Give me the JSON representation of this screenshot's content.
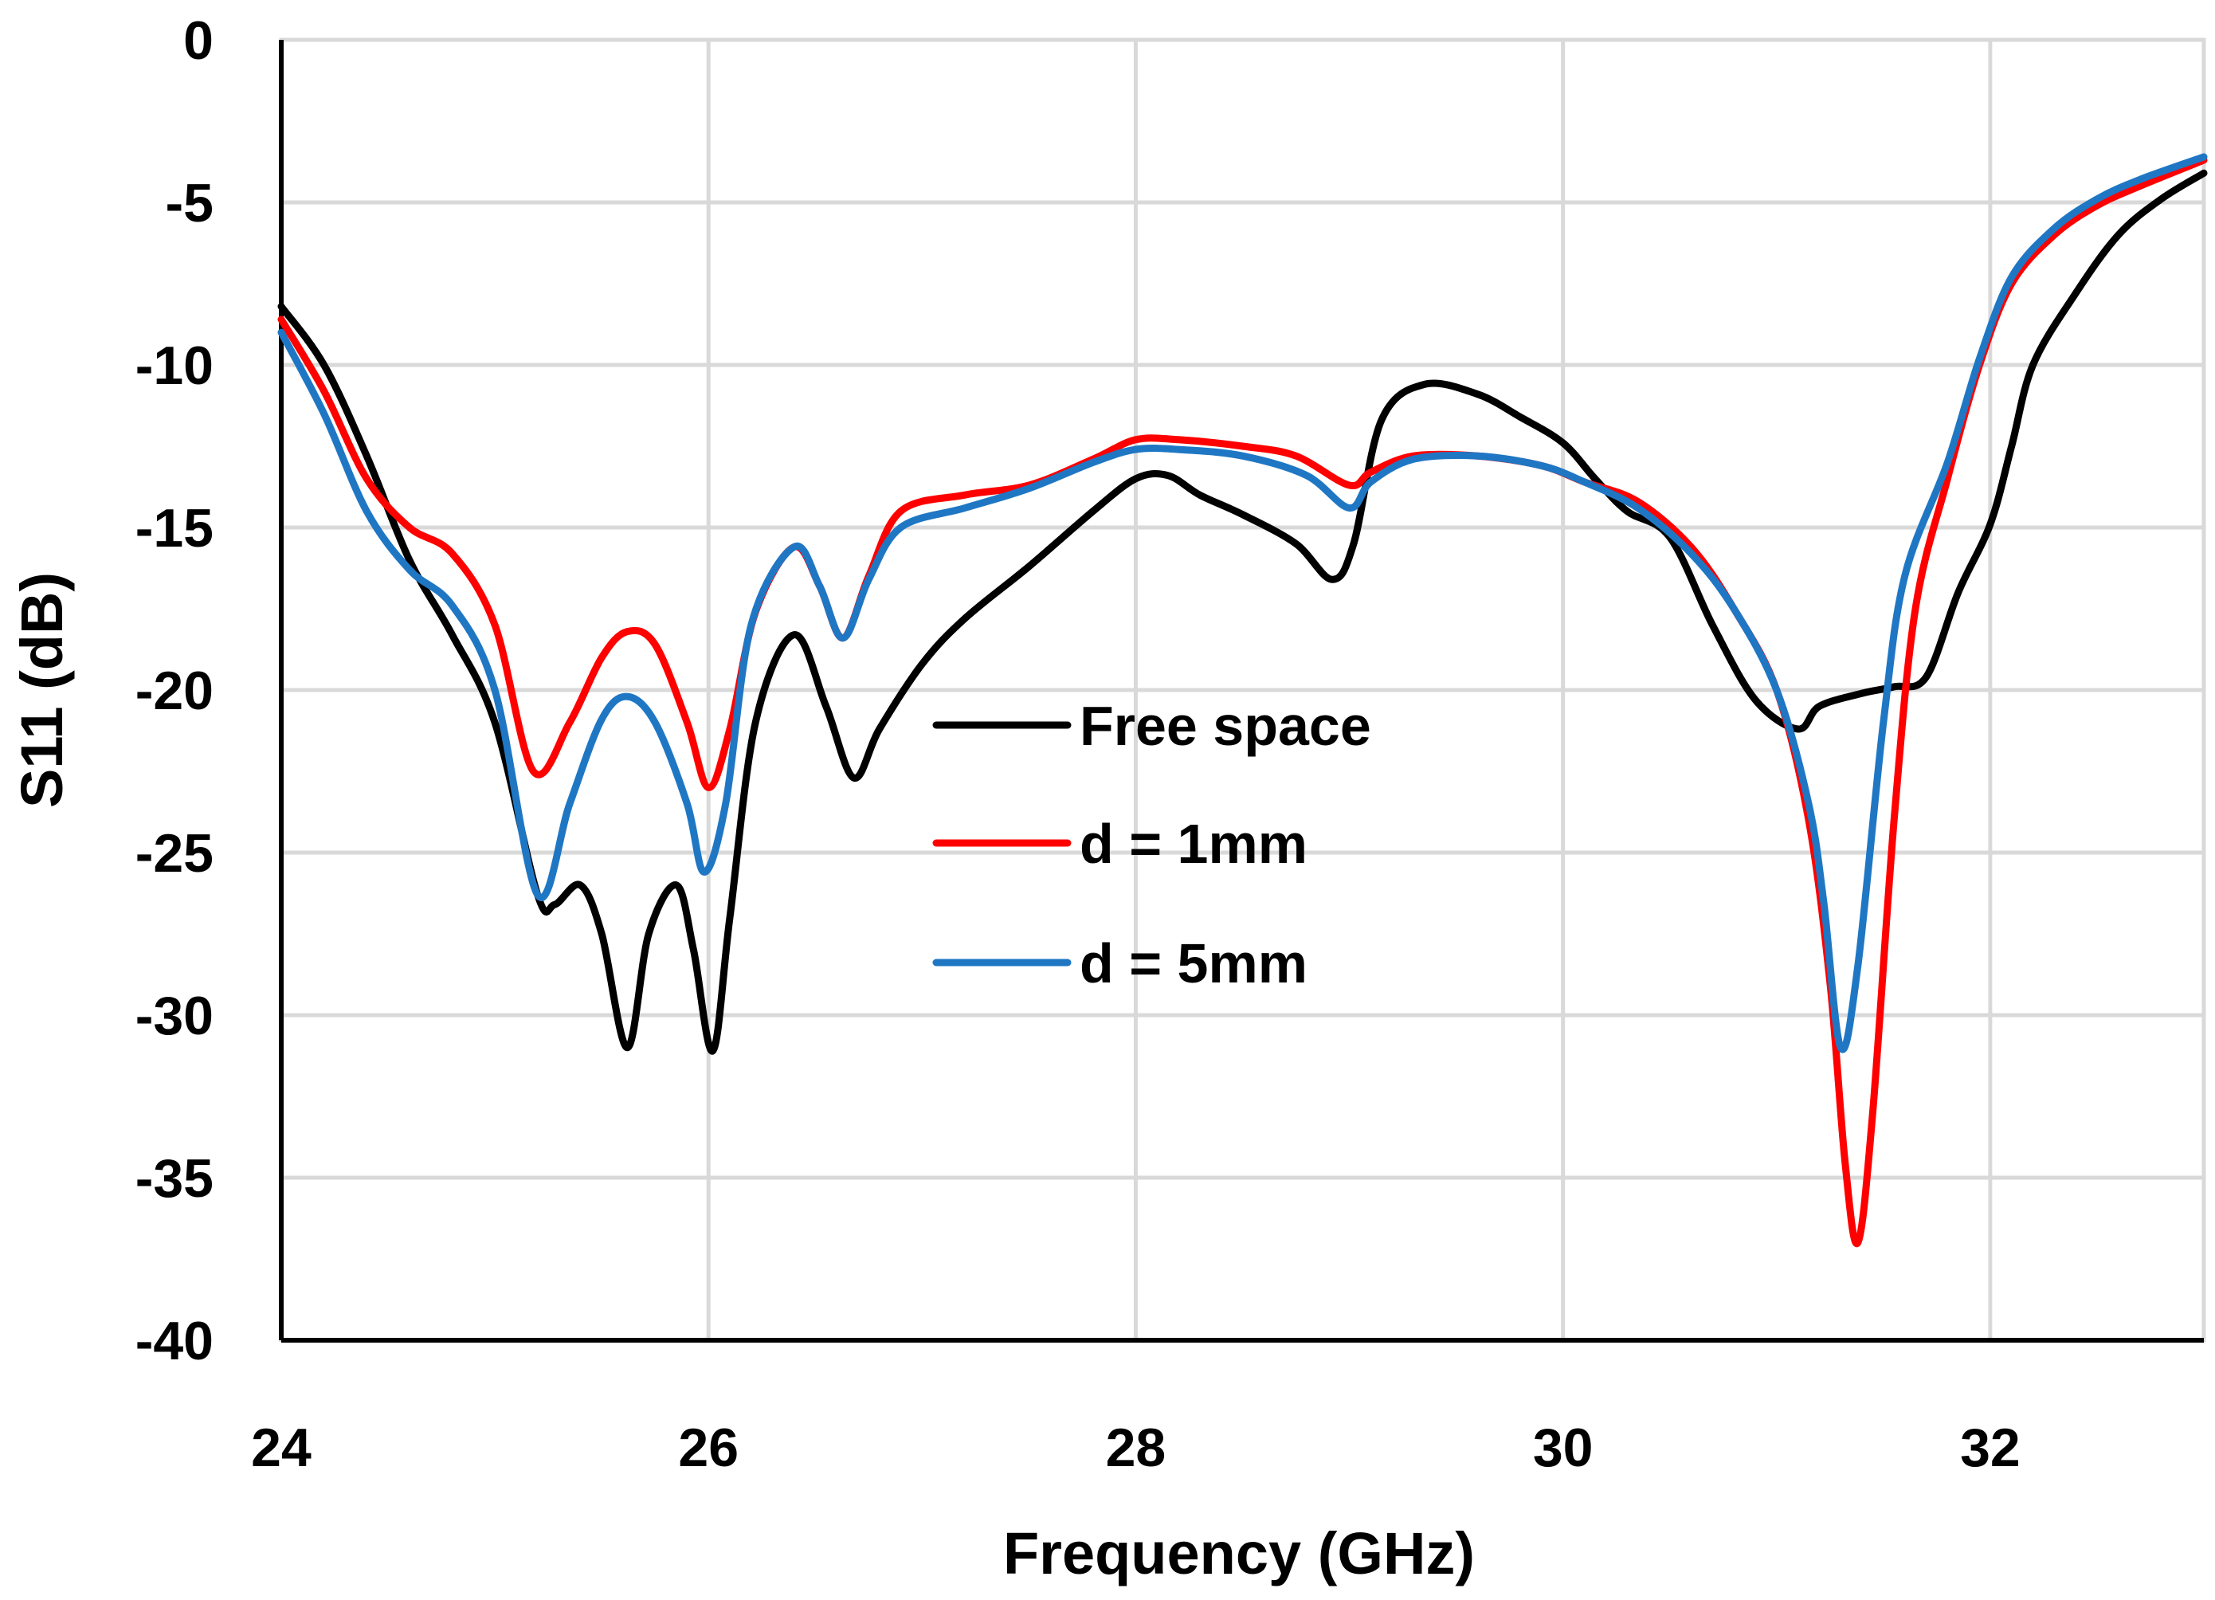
{
  "chart_data": {
    "type": "line",
    "title": "",
    "xlabel": "Frequency (GHz)",
    "ylabel": "S11 (dB)",
    "xlim": [
      24,
      33
    ],
    "ylim": [
      -40,
      0
    ],
    "xticks": [
      24,
      26,
      28,
      30,
      32
    ],
    "yticks": [
      0,
      -5,
      -10,
      -15,
      -20,
      -25,
      -30,
      -35,
      -40
    ],
    "x_tick_labels": [
      "24",
      "26",
      "28",
      "30",
      "32"
    ],
    "y_tick_labels": [
      "0",
      "-5",
      "-10",
      "-15",
      "-20",
      "-25",
      "-30",
      "-35",
      "-40"
    ],
    "grid": true,
    "legend_position": "center",
    "series": [
      {
        "name": "Free space",
        "color": "#000000",
        "points": [
          [
            24.0,
            -8.2
          ],
          [
            24.2,
            -10.0
          ],
          [
            24.4,
            -12.8
          ],
          [
            24.6,
            -16.0
          ],
          [
            24.8,
            -18.3
          ],
          [
            25.0,
            -21.0
          ],
          [
            25.2,
            -26.3
          ],
          [
            25.28,
            -26.6
          ],
          [
            25.4,
            -26.0
          ],
          [
            25.5,
            -27.5
          ],
          [
            25.62,
            -31.0
          ],
          [
            25.72,
            -27.5
          ],
          [
            25.85,
            -26.0
          ],
          [
            25.93,
            -28.0
          ],
          [
            26.02,
            -31.1
          ],
          [
            26.1,
            -27.0
          ],
          [
            26.22,
            -21.0
          ],
          [
            26.4,
            -18.3
          ],
          [
            26.55,
            -20.5
          ],
          [
            26.68,
            -22.7
          ],
          [
            26.8,
            -21.2
          ],
          [
            27.0,
            -19.2
          ],
          [
            27.2,
            -17.8
          ],
          [
            27.5,
            -16.2
          ],
          [
            27.8,
            -14.5
          ],
          [
            28.0,
            -13.5
          ],
          [
            28.15,
            -13.4
          ],
          [
            28.3,
            -14.0
          ],
          [
            28.5,
            -14.6
          ],
          [
            28.75,
            -15.5
          ],
          [
            28.92,
            -16.6
          ],
          [
            29.02,
            -15.5
          ],
          [
            29.15,
            -11.7
          ],
          [
            29.35,
            -10.6
          ],
          [
            29.6,
            -10.9
          ],
          [
            29.8,
            -11.6
          ],
          [
            30.0,
            -12.4
          ],
          [
            30.15,
            -13.5
          ],
          [
            30.3,
            -14.5
          ],
          [
            30.5,
            -15.3
          ],
          [
            30.7,
            -18.0
          ],
          [
            30.9,
            -20.3
          ],
          [
            31.1,
            -21.2
          ],
          [
            31.2,
            -20.5
          ],
          [
            31.4,
            -20.1
          ],
          [
            31.55,
            -19.9
          ],
          [
            31.7,
            -19.6
          ],
          [
            31.85,
            -17.0
          ],
          [
            32.0,
            -14.9
          ],
          [
            32.1,
            -12.5
          ],
          [
            32.2,
            -10.0
          ],
          [
            32.4,
            -7.8
          ],
          [
            32.6,
            -6.0
          ],
          [
            32.8,
            -4.9
          ],
          [
            33.0,
            -4.1
          ]
        ]
      },
      {
        "name": "d = 1mm",
        "color": "#ff0000",
        "points": [
          [
            24.0,
            -8.6
          ],
          [
            24.2,
            -10.8
          ],
          [
            24.4,
            -13.5
          ],
          [
            24.6,
            -15.0
          ],
          [
            24.8,
            -15.8
          ],
          [
            25.0,
            -18.0
          ],
          [
            25.18,
            -22.5
          ],
          [
            25.35,
            -21.0
          ],
          [
            25.5,
            -19.0
          ],
          [
            25.62,
            -18.2
          ],
          [
            25.75,
            -18.6
          ],
          [
            25.9,
            -21.0
          ],
          [
            26.0,
            -23.0
          ],
          [
            26.1,
            -21.2
          ],
          [
            26.22,
            -17.6
          ],
          [
            26.4,
            -15.6
          ],
          [
            26.52,
            -16.8
          ],
          [
            26.63,
            -18.4
          ],
          [
            26.75,
            -16.5
          ],
          [
            26.9,
            -14.5
          ],
          [
            27.2,
            -14.0
          ],
          [
            27.5,
            -13.7
          ],
          [
            27.8,
            -12.9
          ],
          [
            28.0,
            -12.3
          ],
          [
            28.2,
            -12.3
          ],
          [
            28.5,
            -12.5
          ],
          [
            28.75,
            -12.8
          ],
          [
            29.0,
            -13.7
          ],
          [
            29.1,
            -13.3
          ],
          [
            29.3,
            -12.8
          ],
          [
            29.6,
            -12.8
          ],
          [
            29.9,
            -13.1
          ],
          [
            30.1,
            -13.6
          ],
          [
            30.35,
            -14.2
          ],
          [
            30.6,
            -15.6
          ],
          [
            30.8,
            -17.5
          ],
          [
            31.0,
            -20.0
          ],
          [
            31.15,
            -24.0
          ],
          [
            31.25,
            -29.0
          ],
          [
            31.32,
            -34.5
          ],
          [
            31.38,
            -37.0
          ],
          [
            31.45,
            -33.0
          ],
          [
            31.55,
            -24.0
          ],
          [
            31.65,
            -17.5
          ],
          [
            31.8,
            -13.5
          ],
          [
            31.95,
            -10.0
          ],
          [
            32.1,
            -7.5
          ],
          [
            32.3,
            -6.0
          ],
          [
            32.5,
            -5.1
          ],
          [
            32.7,
            -4.5
          ],
          [
            33.0,
            -3.7
          ]
        ]
      },
      {
        "name": "d = 5mm",
        "color": "#1f77c4",
        "points": [
          [
            24.0,
            -9.0
          ],
          [
            24.2,
            -11.5
          ],
          [
            24.4,
            -14.5
          ],
          [
            24.6,
            -16.3
          ],
          [
            24.8,
            -17.4
          ],
          [
            25.0,
            -20.0
          ],
          [
            25.2,
            -26.3
          ],
          [
            25.35,
            -23.5
          ],
          [
            25.5,
            -20.9
          ],
          [
            25.62,
            -20.2
          ],
          [
            25.75,
            -21.0
          ],
          [
            25.9,
            -23.5
          ],
          [
            25.98,
            -25.6
          ],
          [
            26.08,
            -23.5
          ],
          [
            26.2,
            -18.0
          ],
          [
            26.4,
            -15.6
          ],
          [
            26.52,
            -16.8
          ],
          [
            26.63,
            -18.4
          ],
          [
            26.75,
            -16.6
          ],
          [
            26.9,
            -15.0
          ],
          [
            27.2,
            -14.4
          ],
          [
            27.5,
            -13.8
          ],
          [
            27.8,
            -13.0
          ],
          [
            28.0,
            -12.6
          ],
          [
            28.2,
            -12.6
          ],
          [
            28.5,
            -12.8
          ],
          [
            28.8,
            -13.4
          ],
          [
            29.0,
            -14.4
          ],
          [
            29.1,
            -13.6
          ],
          [
            29.3,
            -12.9
          ],
          [
            29.6,
            -12.8
          ],
          [
            29.9,
            -13.1
          ],
          [
            30.1,
            -13.6
          ],
          [
            30.35,
            -14.4
          ],
          [
            30.6,
            -15.8
          ],
          [
            30.8,
            -17.5
          ],
          [
            31.0,
            -20.0
          ],
          [
            31.15,
            -23.5
          ],
          [
            31.22,
            -26.5
          ],
          [
            31.3,
            -31.0
          ],
          [
            31.38,
            -28.5
          ],
          [
            31.5,
            -21.0
          ],
          [
            31.6,
            -16.5
          ],
          [
            31.8,
            -13.0
          ],
          [
            31.95,
            -9.8
          ],
          [
            32.1,
            -7.3
          ],
          [
            32.3,
            -5.8
          ],
          [
            32.5,
            -4.9
          ],
          [
            32.7,
            -4.3
          ],
          [
            33.0,
            -3.6
          ]
        ]
      }
    ]
  }
}
